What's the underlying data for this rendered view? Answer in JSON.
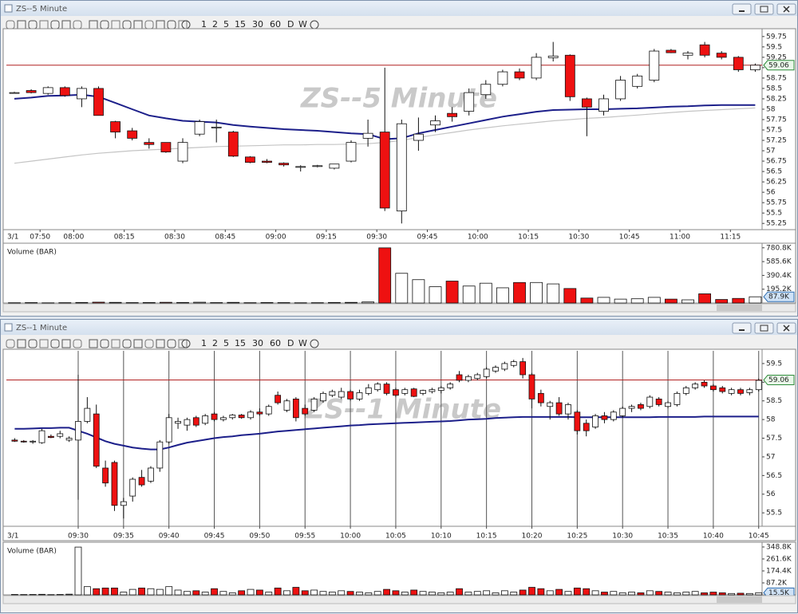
{
  "windows": [
    {
      "title": "ZS--5 Minute",
      "toolbar": [
        "1",
        "2",
        "5",
        "15",
        "30",
        "60",
        "D",
        "W"
      ]
    },
    {
      "title": "ZS--1 Minute",
      "toolbar": [
        "1",
        "2",
        "5",
        "15",
        "30",
        "60",
        "D",
        "W"
      ]
    }
  ],
  "chart_data": [
    {
      "type": "candlestick",
      "watermark": "ZS--5 Minute",
      "date_label": "3/1",
      "categories": [
        null,
        null,
        "07:50",
        null,
        "08:00",
        null,
        null,
        "08:15",
        null,
        null,
        "08:30",
        null,
        null,
        "08:45",
        null,
        null,
        "09:00",
        null,
        null,
        "09:15",
        null,
        null,
        "09:30",
        null,
        null,
        "09:45",
        null,
        null,
        "10:00",
        null,
        null,
        "10:15",
        null,
        null,
        "10:30",
        null,
        null,
        "10:45",
        null,
        null,
        "11:00",
        null,
        null,
        "11:15",
        null
      ],
      "open": [
        58.4,
        58.45,
        58.38,
        58.52,
        58.25,
        58.5,
        57.7,
        57.48,
        57.2,
        57.2,
        56.75,
        57.4,
        57.55,
        57.45,
        56.85,
        56.75,
        56.7,
        56.6,
        56.62,
        56.58,
        56.75,
        57.3,
        57.45,
        55.55,
        57.25,
        57.62,
        57.9,
        57.95,
        58.35,
        58.6,
        58.9,
        58.75,
        59.24,
        59.3,
        58.25,
        57.95,
        58.25,
        58.55,
        58.7,
        59.42,
        59.3,
        59.55,
        59.35,
        59.25,
        58.95
      ],
      "high": [
        58.42,
        58.48,
        58.55,
        58.55,
        58.55,
        58.55,
        57.72,
        57.55,
        57.3,
        57.2,
        57.3,
        57.75,
        57.75,
        57.48,
        56.87,
        56.8,
        56.72,
        56.65,
        56.66,
        56.68,
        57.25,
        57.75,
        59.0,
        57.75,
        57.8,
        57.85,
        58.05,
        58.5,
        58.7,
        58.95,
        58.98,
        59.35,
        59.62,
        59.32,
        58.28,
        58.35,
        58.8,
        58.85,
        59.45,
        59.45,
        59.4,
        59.62,
        59.4,
        59.28,
        59.1
      ],
      "low": [
        58.38,
        58.38,
        58.35,
        58.3,
        58.05,
        57.85,
        57.3,
        57.25,
        57.05,
        56.95,
        56.7,
        57.35,
        57.2,
        56.85,
        56.7,
        56.7,
        56.62,
        56.5,
        56.6,
        56.55,
        56.72,
        57.1,
        55.55,
        55.25,
        57.0,
        57.45,
        57.7,
        57.85,
        58.25,
        58.55,
        58.7,
        58.7,
        59.15,
        58.2,
        57.35,
        57.85,
        58.2,
        58.5,
        58.65,
        59.35,
        59.2,
        59.25,
        59.2,
        58.9,
        58.9
      ],
      "close": [
        58.4,
        58.4,
        58.52,
        58.33,
        58.5,
        57.85,
        57.45,
        57.3,
        57.15,
        56.97,
        57.2,
        57.7,
        57.57,
        56.87,
        56.72,
        56.72,
        56.66,
        56.62,
        56.64,
        56.68,
        57.2,
        57.42,
        55.62,
        57.65,
        57.4,
        57.72,
        57.82,
        58.4,
        58.6,
        58.9,
        58.75,
        59.25,
        59.28,
        58.3,
        58.05,
        58.25,
        58.7,
        58.8,
        59.4,
        59.36,
        59.35,
        59.3,
        59.25,
        58.95,
        59.06
      ],
      "up_color": "#ffffff",
      "down_color": "#ee1111",
      "overlays": [
        {
          "color": "#1c1f8a",
          "values": [
            58.25,
            58.28,
            58.32,
            58.33,
            58.35,
            58.3,
            58.15,
            58.0,
            57.85,
            57.78,
            57.72,
            57.7,
            57.68,
            57.62,
            57.58,
            57.55,
            57.52,
            57.5,
            57.48,
            57.45,
            57.42,
            57.4,
            57.28,
            57.3,
            57.42,
            57.5,
            57.58,
            57.66,
            57.74,
            57.82,
            57.88,
            57.94,
            57.98,
            57.99,
            58.0,
            58.0,
            58.01,
            58.02,
            58.04,
            58.06,
            58.07,
            58.09,
            58.1,
            58.1,
            58.1
          ]
        },
        {
          "color": "#c4c4c4",
          "values": [
            56.7,
            56.75,
            56.8,
            56.85,
            56.9,
            56.94,
            56.97,
            57.0,
            57.02,
            57.04,
            57.06,
            57.08,
            57.1,
            57.11,
            57.12,
            57.13,
            57.14,
            57.14,
            57.15,
            57.15,
            57.16,
            57.17,
            57.2,
            57.25,
            57.32,
            57.38,
            57.44,
            57.5,
            57.55,
            57.6,
            57.64,
            57.68,
            57.72,
            57.75,
            57.78,
            57.8,
            57.83,
            57.86,
            57.89,
            57.92,
            57.95,
            57.97,
            57.99,
            58.01,
            58.03
          ]
        }
      ],
      "ylim": [
        55.1,
        59.9
      ],
      "yticks": [
        55.25,
        55.5,
        55.75,
        56,
        56.25,
        56.5,
        56.75,
        57,
        57.25,
        57.5,
        57.75,
        58,
        58.25,
        58.5,
        58.75,
        59,
        59.25,
        59.5,
        59.75
      ],
      "last_value": 59.06,
      "last_color": "#b22222",
      "grid": false
    },
    {
      "type": "bar",
      "title": "Volume (BAR)",
      "values": [
        4000,
        6000,
        3000,
        5000,
        8000,
        12000,
        9000,
        6000,
        7000,
        10000,
        8000,
        11000,
        6000,
        9000,
        5000,
        7000,
        6000,
        4000,
        5000,
        8000,
        9000,
        15000,
        780000,
        420000,
        330000,
        230000,
        310000,
        240000,
        280000,
        215000,
        290000,
        290000,
        270000,
        205000,
        70000,
        80000,
        55000,
        60000,
        80000,
        55000,
        45000,
        130000,
        50000,
        65000,
        87900
      ],
      "ylim": [
        0,
        812000
      ],
      "yticks": [
        {
          "value": 195200,
          "label": "195.2K"
        },
        {
          "value": 390400,
          "label": "390.4K"
        },
        {
          "value": 585600,
          "label": "585.6K"
        },
        {
          "value": 780800,
          "label": "780.8K"
        }
      ],
      "last_value": {
        "value": 87900,
        "label": "87.9K"
      }
    },
    {
      "type": "candlestick",
      "watermark": "ZS--1 Minute",
      "date_label": "3/1",
      "categories": [
        null,
        null,
        null,
        null,
        null,
        null,
        null,
        "09:30",
        null,
        null,
        null,
        null,
        "09:35",
        null,
        null,
        null,
        null,
        "09:40",
        null,
        null,
        null,
        null,
        "09:45",
        null,
        null,
        null,
        null,
        "09:50",
        null,
        null,
        null,
        null,
        "09:55",
        null,
        null,
        null,
        null,
        "10:00",
        null,
        null,
        null,
        null,
        "10:05",
        null,
        null,
        null,
        null,
        "10:10",
        null,
        null,
        null,
        null,
        "10:15",
        null,
        null,
        null,
        null,
        "10:20",
        null,
        null,
        null,
        null,
        "10:25",
        null,
        null,
        null,
        null,
        "10:30",
        null,
        null,
        null,
        null,
        "10:35",
        null,
        null,
        null,
        null,
        "10:40",
        null,
        null,
        null,
        null,
        "10:45"
      ],
      "open": [
        57.45,
        57.42,
        57.4,
        57.38,
        57.55,
        57.55,
        57.45,
        57.45,
        57.95,
        58.15,
        56.7,
        56.85,
        55.7,
        55.95,
        56.45,
        56.35,
        56.7,
        57.4,
        57.9,
        57.85,
        58.05,
        57.9,
        58.15,
        58.0,
        58.05,
        58.12,
        58.05,
        58.2,
        58.15,
        58.65,
        58.25,
        58.55,
        58.3,
        58.25,
        58.5,
        58.65,
        58.6,
        58.75,
        58.55,
        58.7,
        58.8,
        58.95,
        58.8,
        58.7,
        58.82,
        58.7,
        58.75,
        58.78,
        58.85,
        59.2,
        59.05,
        59.1,
        59.15,
        59.3,
        59.35,
        59.45,
        59.55,
        59.2,
        58.7,
        58.35,
        58.45,
        58.15,
        58.2,
        57.9,
        57.8,
        58.1,
        58.0,
        58.1,
        58.3,
        58.4,
        58.35,
        58.55,
        58.35,
        58.4,
        58.7,
        58.85,
        59.0,
        58.9,
        58.85,
        58.7,
        58.8,
        58.72,
        58.8
      ],
      "high": [
        57.5,
        57.45,
        57.45,
        57.75,
        57.6,
        57.7,
        57.55,
        59.2,
        58.6,
        58.4,
        56.9,
        56.9,
        55.9,
        56.45,
        56.65,
        56.75,
        57.45,
        58.15,
        58.05,
        58.05,
        58.1,
        58.15,
        58.2,
        58.1,
        58.15,
        58.15,
        58.25,
        58.3,
        58.4,
        58.75,
        58.55,
        58.6,
        58.4,
        58.6,
        58.75,
        58.8,
        58.85,
        58.8,
        58.8,
        58.95,
        59.0,
        59.0,
        58.85,
        58.85,
        58.85,
        58.8,
        58.85,
        58.9,
        59.0,
        59.3,
        59.2,
        59.25,
        59.4,
        59.45,
        59.55,
        59.6,
        59.65,
        59.25,
        58.8,
        58.5,
        58.6,
        58.45,
        58.25,
        58.0,
        58.15,
        58.2,
        58.25,
        58.35,
        58.4,
        58.45,
        58.65,
        58.6,
        58.5,
        58.75,
        58.9,
        59.0,
        59.05,
        58.95,
        58.9,
        58.85,
        58.85,
        58.85,
        59.1
      ],
      "low": [
        57.4,
        57.38,
        57.35,
        57.35,
        57.5,
        57.5,
        57.4,
        55.85,
        57.9,
        56.7,
        56.2,
        55.55,
        55.35,
        55.8,
        56.2,
        56.3,
        56.6,
        57.35,
        57.75,
        57.7,
        57.8,
        57.85,
        57.95,
        57.95,
        58.0,
        58.02,
        58.0,
        58.1,
        58.1,
        58.4,
        58.2,
        57.95,
        58.1,
        58.2,
        58.45,
        58.6,
        58.55,
        58.5,
        58.5,
        58.65,
        58.75,
        58.65,
        58.6,
        58.65,
        58.6,
        58.65,
        58.7,
        58.7,
        58.8,
        59.0,
        59.0,
        59.05,
        59.1,
        59.25,
        59.3,
        59.4,
        59.1,
        58.3,
        58.35,
        58.0,
        58.1,
        58.0,
        57.6,
        57.55,
        57.75,
        57.9,
        57.95,
        58.05,
        58.2,
        58.25,
        58.3,
        58.35,
        58.3,
        58.35,
        58.65,
        58.8,
        58.85,
        58.75,
        58.7,
        58.65,
        58.65,
        58.65,
        58.75
      ],
      "close": [
        57.42,
        57.4,
        57.42,
        57.7,
        57.52,
        57.62,
        57.5,
        57.95,
        58.3,
        56.75,
        56.3,
        55.7,
        55.8,
        56.4,
        56.25,
        56.7,
        57.4,
        58.05,
        57.95,
        58.0,
        57.85,
        58.1,
        58.0,
        58.05,
        58.12,
        58.05,
        58.2,
        58.15,
        58.35,
        58.45,
        58.5,
        58.05,
        58.15,
        58.55,
        58.7,
        58.75,
        58.75,
        58.55,
        58.72,
        58.85,
        58.95,
        58.7,
        58.65,
        58.8,
        58.62,
        58.78,
        58.8,
        58.85,
        58.95,
        59.05,
        59.15,
        59.2,
        59.35,
        59.4,
        59.5,
        59.55,
        59.2,
        58.55,
        58.45,
        58.45,
        58.15,
        58.4,
        57.7,
        57.7,
        58.1,
        58.0,
        58.2,
        58.3,
        58.35,
        58.3,
        58.6,
        58.4,
        58.45,
        58.7,
        58.85,
        58.95,
        58.9,
        58.8,
        58.75,
        58.8,
        58.7,
        58.8,
        59.05
      ],
      "up_color": "#ffffff",
      "down_color": "#ee1111",
      "overlays": [
        {
          "color": "#1c1f8a",
          "values": [
            57.75,
            57.75,
            57.76,
            57.77,
            57.77,
            57.78,
            57.78,
            57.7,
            57.62,
            57.52,
            57.42,
            57.35,
            57.3,
            57.25,
            57.22,
            57.2,
            57.2,
            57.25,
            57.32,
            57.38,
            57.42,
            57.46,
            57.5,
            57.53,
            57.55,
            57.58,
            57.6,
            57.62,
            57.65,
            57.68,
            57.7,
            57.72,
            57.74,
            57.76,
            57.78,
            57.8,
            57.82,
            57.84,
            57.85,
            57.87,
            57.88,
            57.89,
            57.9,
            57.91,
            57.92,
            57.93,
            57.94,
            57.95,
            57.96,
            57.98,
            58.0,
            58.01,
            58.02,
            58.04,
            58.05,
            58.06,
            58.07,
            58.07,
            58.07,
            58.07,
            58.07,
            58.07,
            58.06,
            58.06,
            58.06,
            58.06,
            58.06,
            58.06,
            58.06,
            58.06,
            58.06,
            58.07,
            58.07,
            58.07,
            58.07,
            58.07,
            58.08,
            58.08,
            58.08,
            58.08,
            58.08,
            58.08,
            58.08
          ]
        }
      ],
      "ylim": [
        55.14,
        59.84
      ],
      "yticks": [
        55.5,
        56,
        56.5,
        57,
        57.5,
        58,
        58.5,
        59,
        59.5
      ],
      "last_value": 59.06,
      "last_color": "#b22222",
      "grid": "x"
    },
    {
      "type": "bar",
      "title": "Volume (BAR)",
      "values": [
        3000,
        2500,
        3000,
        4000,
        2000,
        3000,
        5000,
        348000,
        60000,
        45000,
        50000,
        50000,
        20000,
        40000,
        50000,
        45000,
        40000,
        60000,
        35000,
        25000,
        30000,
        20000,
        45000,
        25000,
        15000,
        30000,
        40000,
        35000,
        20000,
        50000,
        30000,
        55000,
        30000,
        35000,
        25000,
        20000,
        30000,
        25000,
        20000,
        15000,
        25000,
        40000,
        30000,
        20000,
        35000,
        25000,
        20000,
        15000,
        20000,
        45000,
        20000,
        25000,
        30000,
        15000,
        30000,
        20000,
        35000,
        55000,
        45000,
        30000,
        40000,
        25000,
        50000,
        45000,
        30000,
        20000,
        25000,
        15000,
        20000,
        15000,
        30000,
        25000,
        20000,
        15000,
        20000,
        25000,
        15000,
        20000,
        15000,
        10000,
        12000,
        10000,
        15500
      ],
      "ylim": [
        0,
        366000
      ],
      "yticks": [
        {
          "value": 87200,
          "label": "87.2K"
        },
        {
          "value": 174400,
          "label": "174.4K"
        },
        {
          "value": 261600,
          "label": "261.6K"
        },
        {
          "value": 348800,
          "label": "348.8K"
        }
      ],
      "last_value": {
        "value": 15500,
        "label": "15.5K"
      }
    }
  ]
}
